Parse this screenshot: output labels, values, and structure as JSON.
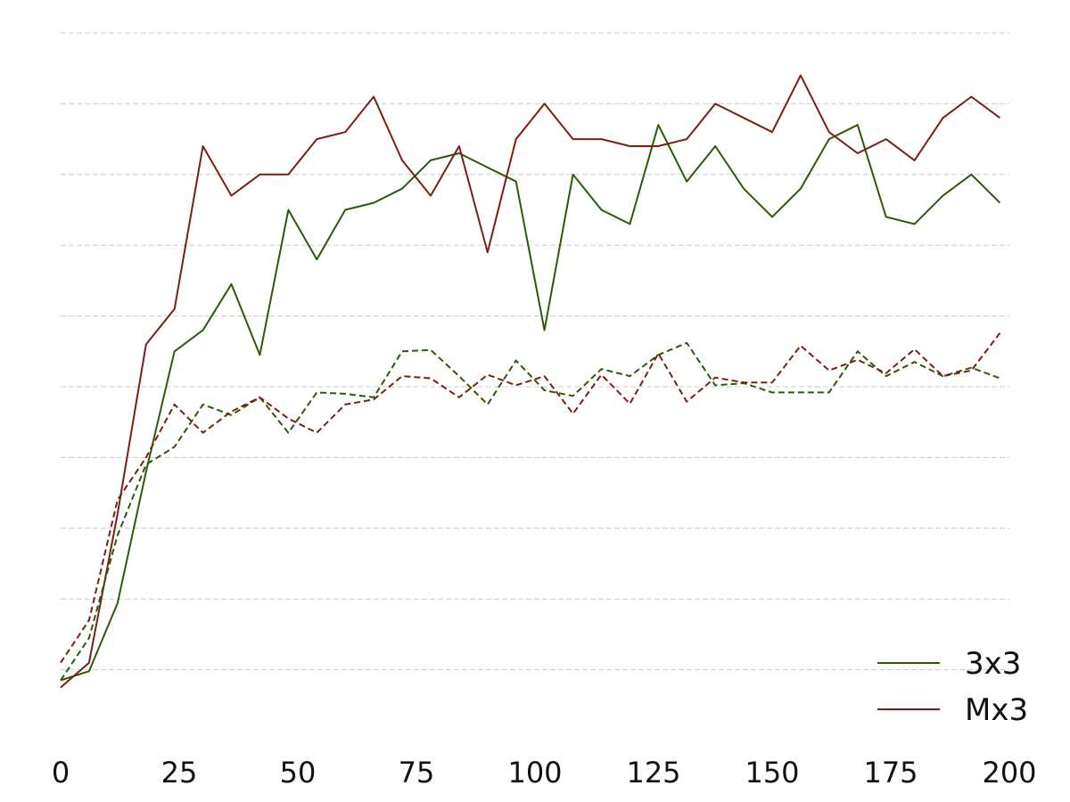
{
  "chart_data": {
    "type": "line",
    "title": "",
    "xlabel": "",
    "ylabel": "",
    "xlim": [
      0,
      200
    ],
    "ylim": [
      0,
      100
    ],
    "xticks": [
      0,
      25,
      50,
      75,
      100,
      125,
      150,
      175,
      200
    ],
    "xtick_labels": [
      "0",
      "25",
      "50",
      "75",
      "100",
      "125",
      "150",
      "175",
      "200"
    ],
    "yticks": [
      10,
      20,
      30,
      40,
      50,
      60,
      70,
      80,
      90,
      100
    ],
    "ytick_labels_visible": false,
    "grid": "horizontal dashed",
    "legend_placement": "bottom-right",
    "x": [
      0,
      6,
      12,
      18,
      24,
      30,
      36,
      42,
      48,
      54,
      60,
      66,
      72,
      78,
      84,
      90,
      96,
      102,
      108,
      114,
      120,
      126,
      132,
      138,
      144,
      150,
      156,
      162,
      168,
      174,
      180,
      186,
      192,
      198
    ],
    "series": [
      {
        "name": "3x3",
        "legend": true,
        "color": "#2a5a0a",
        "dash": "solid",
        "values": [
          8.5,
          9.8,
          19.4,
          38,
          55,
          58,
          64.5,
          54.5,
          75,
          68,
          75,
          76,
          78,
          82,
          83,
          81,
          79,
          58,
          80,
          75,
          73,
          87,
          79,
          84,
          78,
          74,
          78,
          85,
          87,
          74,
          73,
          77,
          80,
          76
        ]
      },
      {
        "name": "Mx3",
        "legend": true,
        "color": "#7a1f14",
        "dash": "solid",
        "values": [
          7.5,
          11,
          32,
          56,
          61,
          84,
          77,
          80,
          80,
          85,
          86,
          91,
          82,
          77,
          84,
          69,
          85,
          90,
          85,
          85,
          84,
          84,
          85,
          90,
          88,
          86,
          94,
          86,
          83,
          85,
          82,
          88,
          91,
          88
        ]
      },
      {
        "name": "3x3 (dashed)",
        "legend": false,
        "color": "#2a5a0a",
        "dash": "dashed",
        "values": [
          8.5,
          14.5,
          29,
          39,
          41.5,
          47.5,
          46,
          48.5,
          43.5,
          49.2,
          49,
          48.5,
          55,
          55.2,
          51.5,
          47.5,
          53.7,
          49.5,
          48.7,
          52.5,
          51.5,
          54.5,
          56.2,
          50.2,
          50.5,
          49.2,
          49.2,
          49.2,
          55,
          51.5,
          53.5,
          51.5,
          52.7,
          51.2
        ]
      },
      {
        "name": "Mx3 (dashed)",
        "legend": false,
        "color": "#7a1f14",
        "dash": "dashed",
        "values": [
          11,
          17,
          34,
          40,
          47.5,
          43.5,
          46.5,
          48.5,
          45.5,
          43.5,
          47.5,
          48.2,
          51.5,
          51.2,
          48.5,
          51.7,
          50.2,
          51.5,
          46.2,
          51.7,
          47.6,
          54.7,
          47.9,
          51.3,
          50.6,
          50.6,
          55.8,
          52.3,
          53.8,
          51.9,
          55.3,
          51.5,
          52.3,
          57.6
        ]
      }
    ]
  }
}
